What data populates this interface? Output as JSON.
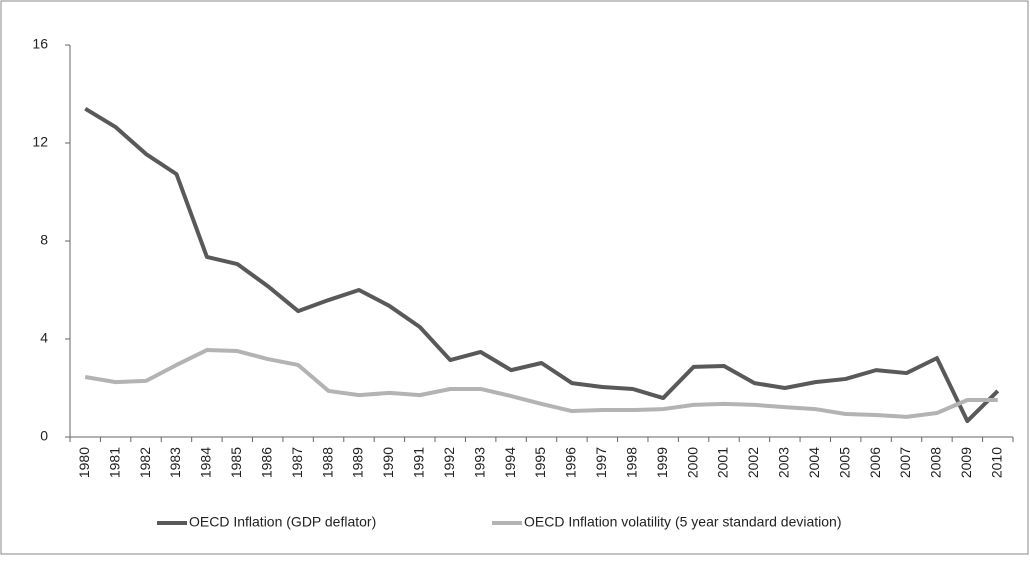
{
  "chart_data": {
    "type": "line",
    "categories": [
      "1980",
      "1981",
      "1982",
      "1983",
      "1984",
      "1985",
      "1986",
      "1987",
      "1988",
      "1989",
      "1990",
      "1991",
      "1992",
      "1993",
      "1994",
      "1995",
      "1996",
      "1997",
      "1998",
      "1999",
      "2000",
      "2001",
      "2002",
      "2003",
      "2004",
      "2005",
      "2006",
      "2007",
      "2008",
      "2009",
      "2010"
    ],
    "series": [
      {
        "name": "OECD Inflation (GDP deflator)",
        "color": "#595959",
        "values": [
          13.4,
          12.65,
          11.55,
          10.73,
          7.35,
          7.06,
          6.16,
          5.14,
          5.59,
          6.0,
          5.35,
          4.49,
          3.14,
          3.47,
          2.73,
          3.02,
          2.2,
          2.04,
          1.96,
          1.59,
          2.86,
          2.9,
          2.2,
          2.0,
          2.24,
          2.37,
          2.73,
          2.61,
          3.22,
          0.65,
          1.88
        ]
      },
      {
        "name": "OECD Inflation volatility (5 year standard deviation)",
        "color": "#b3b3b3",
        "values": [
          2.45,
          2.24,
          2.29,
          2.94,
          3.55,
          3.51,
          3.18,
          2.94,
          1.88,
          1.71,
          1.8,
          1.71,
          1.96,
          1.96,
          1.67,
          1.35,
          1.06,
          1.1,
          1.1,
          1.14,
          1.31,
          1.35,
          1.31,
          1.22,
          1.14,
          0.94,
          0.9,
          0.82,
          0.98,
          1.51,
          1.51
        ]
      }
    ],
    "ylim": [
      0,
      16
    ],
    "yticks": [
      0,
      4,
      8,
      12,
      16
    ],
    "grid": false,
    "legend": "bottom"
  }
}
